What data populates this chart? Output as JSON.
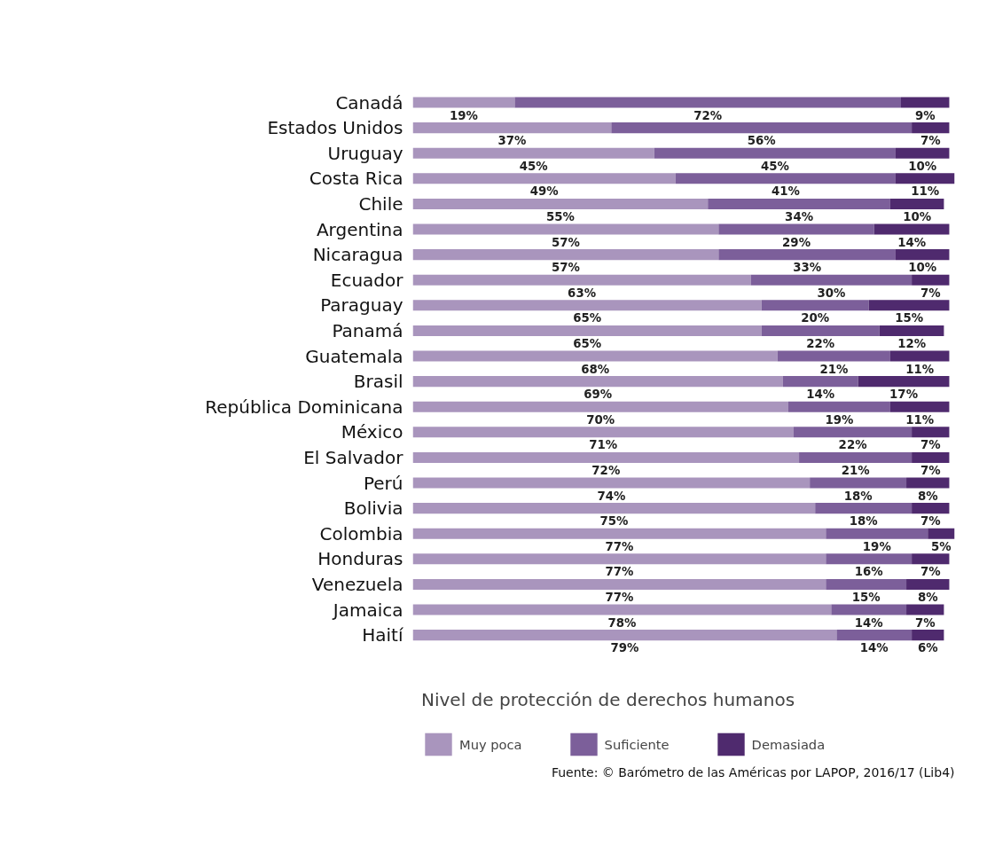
{
  "chart_data": {
    "type": "bar",
    "orientation": "horizontal",
    "stacked": true,
    "tick_labels": "y",
    "grid": false,
    "legend": "bottom",
    "legend_title": "Nivel de protección de derechos humanos",
    "categories": [
      "Canadá",
      "Estados Unidos",
      "Uruguay",
      "Costa Rica",
      "Chile",
      "Argentina",
      "Nicaragua",
      "Ecuador",
      "Paraguay",
      "Panamá",
      "Guatemala",
      "Brasil",
      "República Dominicana",
      "México",
      "El Salvador",
      "Perú",
      "Bolivia",
      "Colombia",
      "Honduras",
      "Venezuela",
      "Jamaica",
      "Haití"
    ],
    "series": [
      {
        "name": "Muy poca",
        "color": "#a995bd",
        "values": [
          19,
          37,
          45,
          49,
          55,
          57,
          57,
          63,
          65,
          65,
          68,
          69,
          70,
          71,
          72,
          74,
          75,
          77,
          77,
          77,
          78,
          79
        ],
        "value_labels": [
          "19%",
          "37%",
          "45%",
          "49%",
          "55%",
          "57%",
          "57%",
          "63%",
          "65%",
          "65%",
          "68%",
          "69%",
          "70%",
          "71%",
          "72%",
          "74%",
          "75%",
          "77%",
          "77%",
          "77%",
          "78%",
          "79%"
        ]
      },
      {
        "name": "Suficiente",
        "color": "#7c5f9a",
        "values": [
          72,
          56,
          45,
          41,
          34,
          29,
          33,
          30,
          20,
          22,
          21,
          14,
          19,
          22,
          21,
          18,
          18,
          19,
          16,
          15,
          14,
          14
        ],
        "value_labels": [
          "72%",
          "56%",
          "45%",
          "41%",
          "34%",
          "29%",
          "33%",
          "30%",
          "20%",
          "22%",
          "21%",
          "14%",
          "19%",
          "22%",
          "21%",
          "18%",
          "18%",
          "19%",
          "16%",
          "15%",
          "14%",
          "14%"
        ]
      },
      {
        "name": "Demasiada",
        "color": "#4f2a6e",
        "values": [
          9,
          7,
          10,
          11,
          10,
          14,
          10,
          7,
          15,
          12,
          11,
          17,
          11,
          7,
          7,
          8,
          7,
          5,
          7,
          8,
          7,
          6
        ],
        "value_labels": [
          "9%",
          "7%",
          "10%",
          "11%",
          "10%",
          "14%",
          "10%",
          "7%",
          "15%",
          "12%",
          "11%",
          "17%",
          "11%",
          "7%",
          "7%",
          "8%",
          "7%",
          "5%",
          "7%",
          "8%",
          "7%",
          "6%"
        ]
      }
    ],
    "annotations": [
      "Fuente: © Barómetro de las Américas por LAPOP, 2016/17 (Lib4)"
    ]
  }
}
